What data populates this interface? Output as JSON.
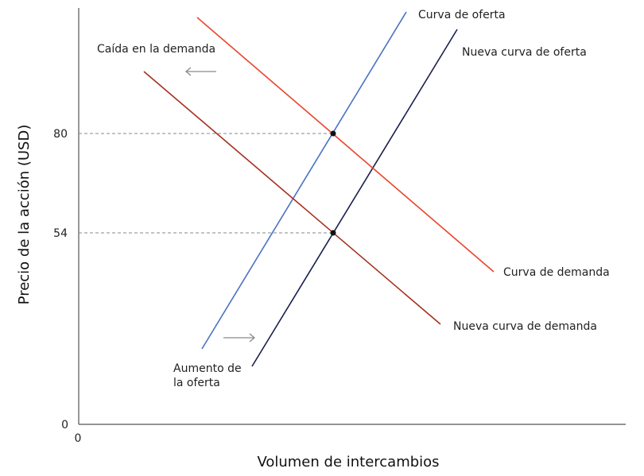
{
  "chart_data": {
    "type": "line",
    "xlabel": "Volumen de intercambios",
    "ylabel": "Precio de la acción (USD)",
    "x_origin_label": "0",
    "y_ticks": [
      0,
      54,
      80
    ],
    "ylim": [
      0,
      80
    ],
    "grid": false,
    "series": [
      {
        "name": "Curva de oferta",
        "color": "#4a72c4"
      },
      {
        "name": "Nueva curva de oferta",
        "color": "#1a1f4e"
      },
      {
        "name": "Curva de demanda",
        "color": "#e8452c"
      },
      {
        "name": "Nueva curva de demanda",
        "color": "#a5301e"
      }
    ],
    "equilibria": [
      {
        "label": "80",
        "y": 80
      },
      {
        "label": "54",
        "y": 54
      }
    ],
    "annotations": {
      "demand_shift_line1": "Caída en la demanda",
      "supply_shift_line1": "Aumento de",
      "supply_shift_line2": "la oferta"
    }
  }
}
